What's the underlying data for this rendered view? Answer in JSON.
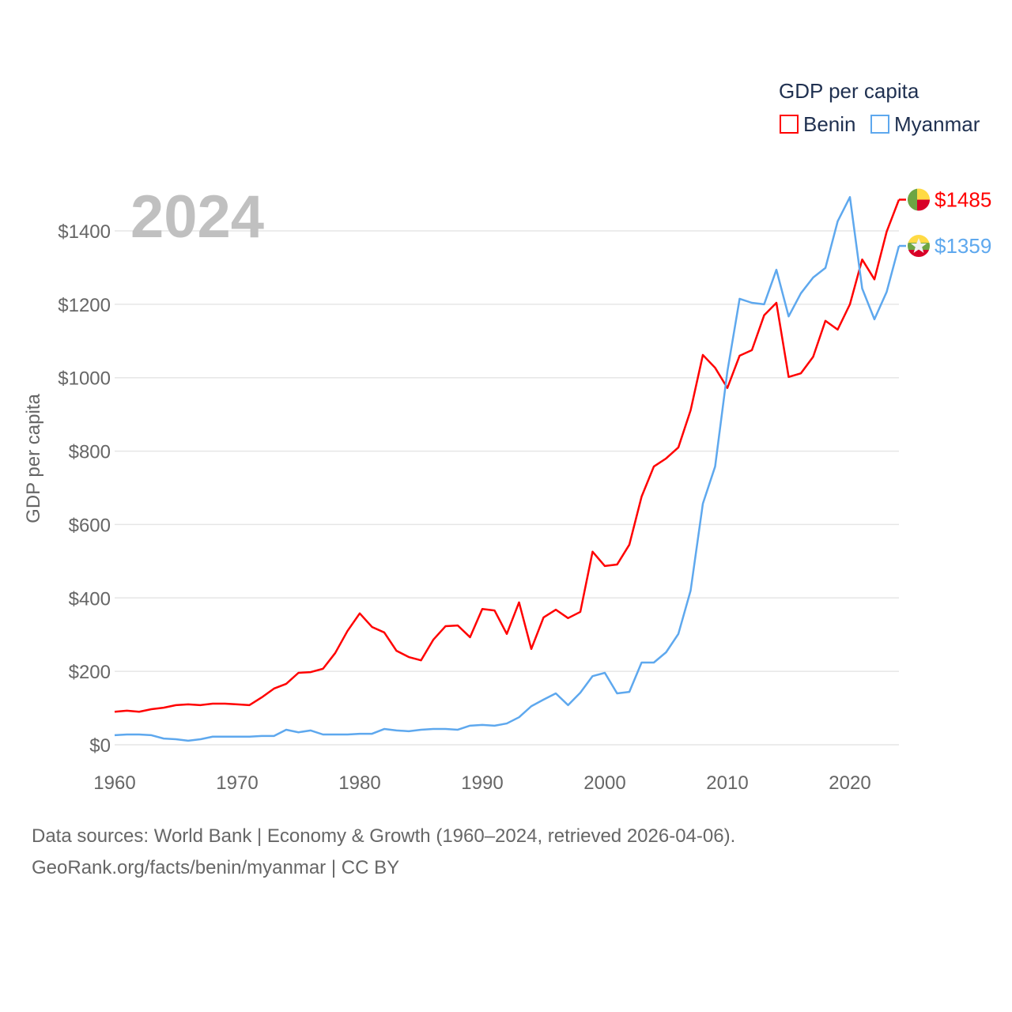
{
  "chart_data": {
    "type": "line",
    "year_label": "2024",
    "legend_title": "GDP per capita",
    "legend_position": "top-right",
    "ylabel": "GDP per capita",
    "xlabel": "",
    "xlim": [
      1960,
      2024
    ],
    "ylim": [
      0,
      1500
    ],
    "x_ticks": [
      1960,
      1970,
      1980,
      1990,
      2000,
      2010,
      2020
    ],
    "y_ticks": [
      0,
      200,
      400,
      600,
      800,
      1000,
      1200,
      1400
    ],
    "y_tick_labels": [
      "$0",
      "$200",
      "$400",
      "$600",
      "$800",
      "$1000",
      "$1200",
      "$1400"
    ],
    "x_tick_labels": [
      "1960",
      "1970",
      "1980",
      "1990",
      "2000",
      "2010",
      "2020"
    ],
    "grid": true,
    "x": [
      1960,
      1961,
      1962,
      1963,
      1964,
      1965,
      1966,
      1967,
      1968,
      1969,
      1970,
      1971,
      1972,
      1973,
      1974,
      1975,
      1976,
      1977,
      1978,
      1979,
      1980,
      1981,
      1982,
      1983,
      1984,
      1985,
      1986,
      1987,
      1988,
      1989,
      1990,
      1991,
      1992,
      1993,
      1994,
      1995,
      1996,
      1997,
      1998,
      1999,
      2000,
      2001,
      2002,
      2003,
      2004,
      2005,
      2006,
      2007,
      2008,
      2009,
      2010,
      2011,
      2012,
      2013,
      2014,
      2015,
      2016,
      2017,
      2018,
      2019,
      2020,
      2021,
      2022,
      2023,
      2024
    ],
    "series": [
      {
        "name": "Benin",
        "color": "#ff0000",
        "end_label": "$1485",
        "flag": "benin-flag",
        "values": [
          90,
          93,
          90,
          97,
          101,
          108,
          110,
          108,
          112,
          112,
          110,
          108,
          129,
          153,
          166,
          196,
          198,
          207,
          250,
          310,
          358,
          321,
          306,
          256,
          239,
          230,
          286,
          323,
          325,
          293,
          370,
          366,
          302,
          388,
          261,
          347,
          368,
          345,
          362,
          526,
          487,
          491,
          545,
          676,
          758,
          780,
          810,
          911,
          1062,
          1027,
          972,
          1060,
          1075,
          1170,
          1204,
          1002,
          1012,
          1057,
          1155,
          1131,
          1200,
          1322,
          1268,
          1398,
          1485
        ]
      },
      {
        "name": "Myanmar",
        "color": "#5ea8ee",
        "end_label": "$1359",
        "flag": "myanmar-flag",
        "values": [
          26,
          28,
          28,
          26,
          17,
          15,
          11,
          15,
          22,
          22,
          22,
          22,
          24,
          24,
          41,
          34,
          39,
          28,
          28,
          28,
          30,
          30,
          43,
          39,
          37,
          41,
          43,
          43,
          41,
          52,
          54,
          52,
          58,
          75,
          105,
          123,
          140,
          108,
          142,
          187,
          196,
          140,
          144,
          224,
          224,
          252,
          302,
          420,
          657,
          758,
          1017,
          1215,
          1204,
          1200,
          1294,
          1167,
          1230,
          1273,
          1299,
          1426,
          1492,
          1243,
          1159,
          1234,
          1359
        ]
      }
    ]
  },
  "footer": {
    "line1": "Data sources: World Bank | Economy & Growth (1960–2024, retrieved 2026-04-06).",
    "line2": "GeoRank.org/facts/benin/myanmar | CC BY"
  }
}
